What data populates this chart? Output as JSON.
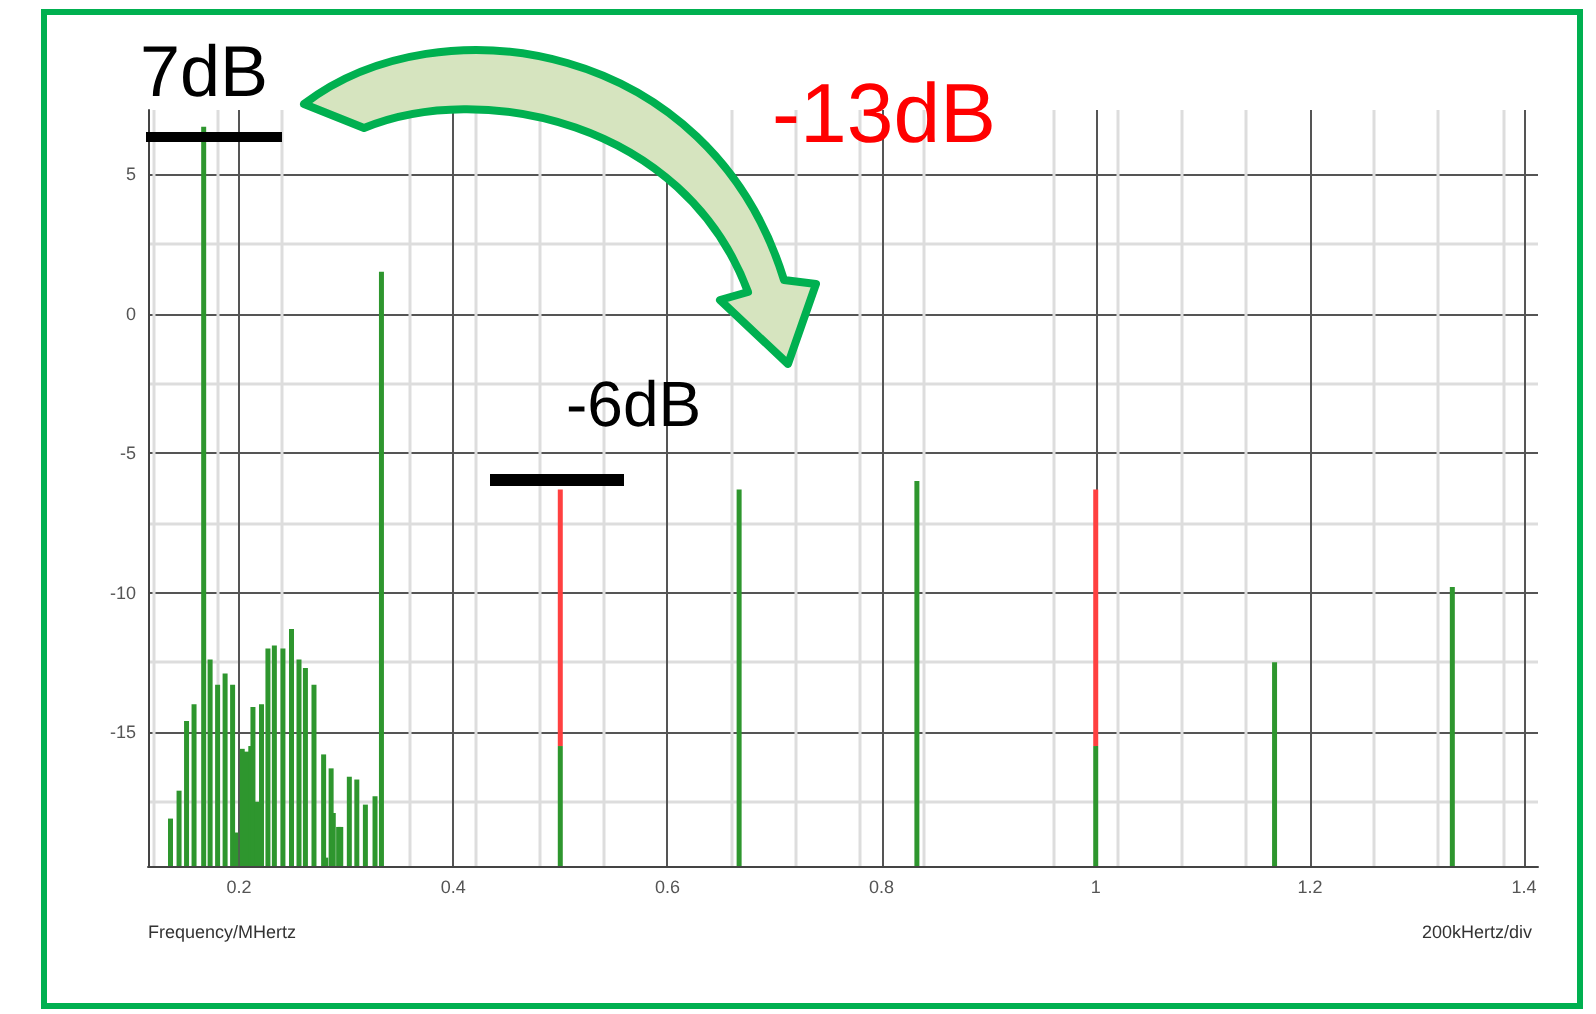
{
  "chart_data": {
    "type": "bar",
    "xlabel": "Frequency/MHertz",
    "annotations": [
      "7dB",
      "-13dB",
      "-6dB",
      "200kHertz/div"
    ],
    "series": [
      {
        "color": "#ff4040",
        "x": [
          0.5,
          1.0
        ],
        "base": [
          -15.5,
          -15.5
        ],
        "values": [
          9.2,
          9.2
        ]
      },
      {
        "color": "#2e962e",
        "x": [
          0.136,
          0.144,
          0.151,
          0.158,
          0.167,
          0.173,
          0.18,
          0.187,
          0.194,
          0.197,
          0.203,
          0.207,
          0.211,
          0.213,
          0.217,
          0.221,
          0.227,
          0.233,
          0.241,
          0.249,
          0.256,
          0.262,
          0.27,
          0.279,
          0.281,
          0.286,
          0.288,
          0.293,
          0.295,
          0.303,
          0.31,
          0.318,
          0.327,
          0.333,
          0.5,
          0.667,
          0.833,
          1.0,
          1.167,
          1.333
        ],
        "base": [
          -19.8,
          -19.8,
          -19.8,
          -19.8,
          -19.8,
          -19.8,
          -19.8,
          -19.8,
          -19.8,
          -19.8,
          -19.8,
          -19.8,
          -19.8,
          -19.8,
          -19.8,
          -19.8,
          -19.8,
          -19.8,
          -19.8,
          -19.8,
          -19.8,
          -19.8,
          -19.8,
          -19.8,
          -19.8,
          -19.8,
          -19.8,
          -19.8,
          -19.8,
          -19.8,
          -19.8,
          -19.8,
          -19.8,
          -19.8,
          -19.8,
          -19.8,
          -19.8,
          -19.8,
          -19.8,
          -19.8
        ],
        "values": [
          1.7,
          2.7,
          5.2,
          5.8,
          26.5,
          7.4,
          6.5,
          6.9,
          6.5,
          1.2,
          4.2,
          4.1,
          4.3,
          5.7,
          2.3,
          5.8,
          7.8,
          7.9,
          7.8,
          8.5,
          7.4,
          7.1,
          6.5,
          4.0,
          0.3,
          3.5,
          1.9,
          1.4,
          1.4,
          3.2,
          3.1,
          2.2,
          2.5,
          21.3,
          4.3,
          13.5,
          13.8,
          4.3,
          7.3,
          10.0
        ]
      }
    ],
    "xlim": [
      0.115,
      1.413
    ],
    "xticks": [
      0.2,
      0.4,
      0.6,
      0.8,
      1,
      1.2,
      1.4
    ],
    "ylim": [
      -19.8,
      7.3
    ],
    "yticks": [
      -15,
      -10,
      -5,
      0,
      5
    ],
    "grid": true
  }
}
